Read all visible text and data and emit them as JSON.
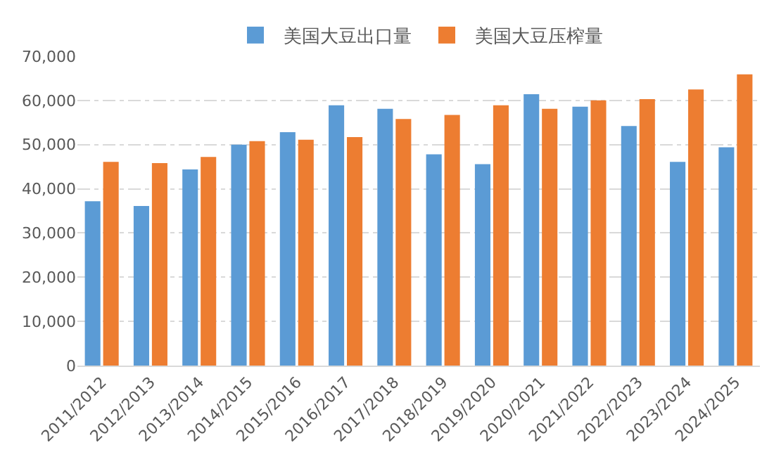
{
  "chart_data": {
    "type": "bar",
    "categories": [
      "2011/2012",
      "2012/2013",
      "2013/2014",
      "2014/2015",
      "2015/2016",
      "2016/2017",
      "2017/2018",
      "2018/2019",
      "2019/2020",
      "2020/2021",
      "2021/2022",
      "2022/2023",
      "2023/2024",
      "2024/2025"
    ],
    "series": [
      {
        "name": "美国大豆出口量",
        "color": "#5b9bd5",
        "values": [
          37200,
          36100,
          44400,
          50000,
          52800,
          58900,
          58100,
          47800,
          45600,
          61400,
          58600,
          54200,
          46100,
          49400
        ]
      },
      {
        "name": "美国大豆压榨量",
        "color": "#ed7d31",
        "values": [
          46100,
          45800,
          47200,
          50800,
          51100,
          51700,
          55800,
          56700,
          58900,
          58100,
          60000,
          60300,
          62500,
          65900
        ]
      }
    ],
    "ylim": [
      0,
      70000
    ],
    "yticks": [
      {
        "value": 0,
        "label": "0"
      },
      {
        "value": 10000,
        "label": "10,000"
      },
      {
        "value": 20000,
        "label": "20,000"
      },
      {
        "value": 30000,
        "label": "30,000"
      },
      {
        "value": 40000,
        "label": "40,000"
      },
      {
        "value": 50000,
        "label": "50,000"
      },
      {
        "value": 60000,
        "label": "60,000"
      },
      {
        "value": 70000,
        "label": "70,000"
      }
    ],
    "grid": "y",
    "legend": "top"
  }
}
